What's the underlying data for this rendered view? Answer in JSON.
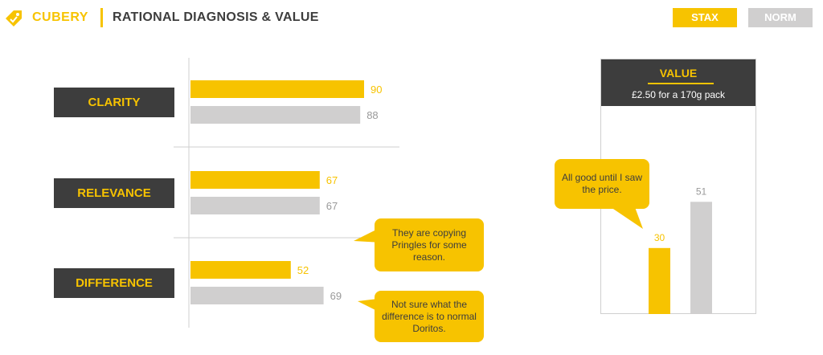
{
  "header": {
    "brand": "CUBERY",
    "title": "RATIONAL DIAGNOSIS & VALUE"
  },
  "legend": [
    {
      "label": "STAX",
      "color": "#f7c300"
    },
    {
      "label": "NORM",
      "color": "#d0cfcf"
    }
  ],
  "colors": {
    "stax": "#f7c300",
    "norm": "#d0cfcf",
    "dark": "#3d3d3d"
  },
  "icons": {
    "header": "tag-icon"
  },
  "chart_data": [
    {
      "type": "bar",
      "orientation": "horizontal",
      "categories": [
        "CLARITY",
        "RELEVANCE",
        "DIFFERENCE"
      ],
      "series": [
        {
          "name": "STAX",
          "values": [
            90,
            67,
            52
          ]
        },
        {
          "name": "NORM",
          "values": [
            88,
            67,
            69
          ]
        }
      ],
      "xlim": [
        0,
        100
      ],
      "data_labels": true
    },
    {
      "type": "bar",
      "title": "VALUE",
      "subtitle": "£2.50 for a 170g pack",
      "series": [
        {
          "name": "STAX",
          "values": [
            30
          ]
        },
        {
          "name": "NORM",
          "values": [
            51
          ]
        }
      ],
      "ylim": [
        0,
        100
      ],
      "data_labels": true
    }
  ],
  "callouts": [
    "They are copying Pringles for some reason.",
    "Not sure what the difference is to normal Doritos.",
    "All good until I saw the price."
  ]
}
